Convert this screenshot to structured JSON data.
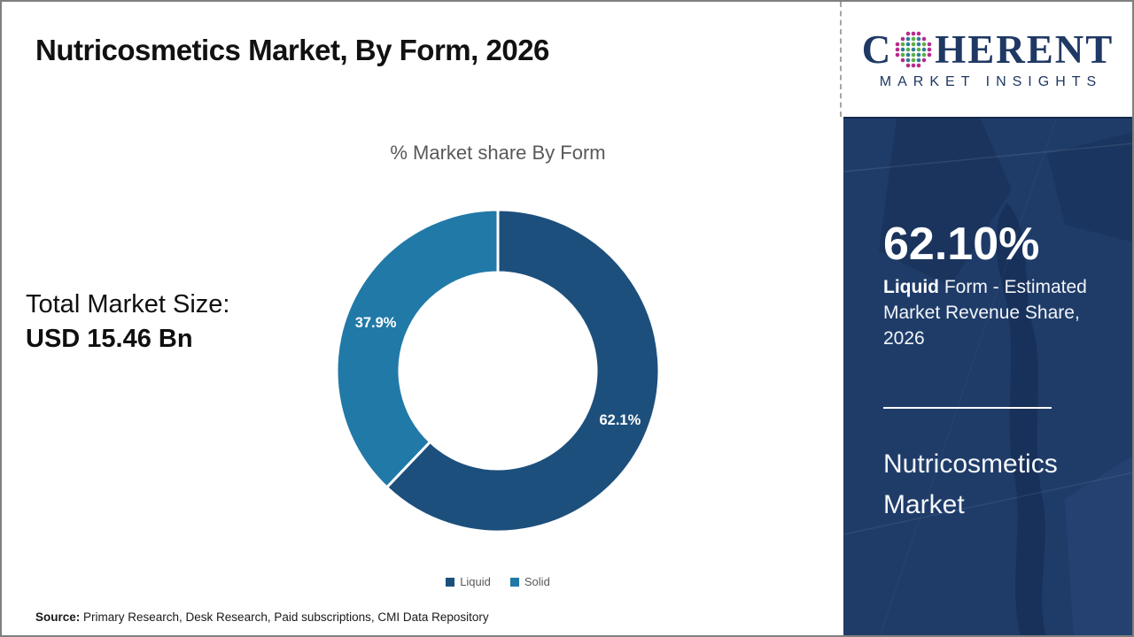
{
  "header": {
    "title": "Nutricosmetics Market, By Form, 2026"
  },
  "logo": {
    "brand_c": "C",
    "brand_rest": "HERENT",
    "tagline": "MARKET INSIGHTS",
    "globe_icon": "dotted-globe",
    "brand_color": "#1f3864"
  },
  "main": {
    "total_market_size": {
      "label": "Total Market Size:",
      "value": "USD 15.46 Bn"
    },
    "source": {
      "label": "Source:",
      "text": " Primary Research, Desk Research, Paid subscriptions, CMI Data Repository"
    }
  },
  "sidebar": {
    "stat_value": "62.10%",
    "stat_highlight": "Liquid",
    "stat_desc_rest": " Form - Estimated Market Revenue Share, 2026",
    "market_name": "Nutricosmetics Market",
    "background_color": "#1f3c69",
    "divider_color": "#ffffff"
  },
  "chart_data": {
    "type": "pie",
    "donut": true,
    "title": "% Market share By Form",
    "categories": [
      "Liquid",
      "Solid"
    ],
    "values": [
      62.1,
      37.9
    ],
    "labels": [
      "62.1%",
      "37.9%"
    ],
    "colors": [
      "#1d4f7c",
      "#2179a7"
    ],
    "start_angle_deg": 0,
    "direction": "clockwise",
    "inner_radius_ratio": 0.61,
    "slice_separator_color": "#ffffff",
    "label_color": "#ffffff",
    "legend_position": "bottom"
  }
}
